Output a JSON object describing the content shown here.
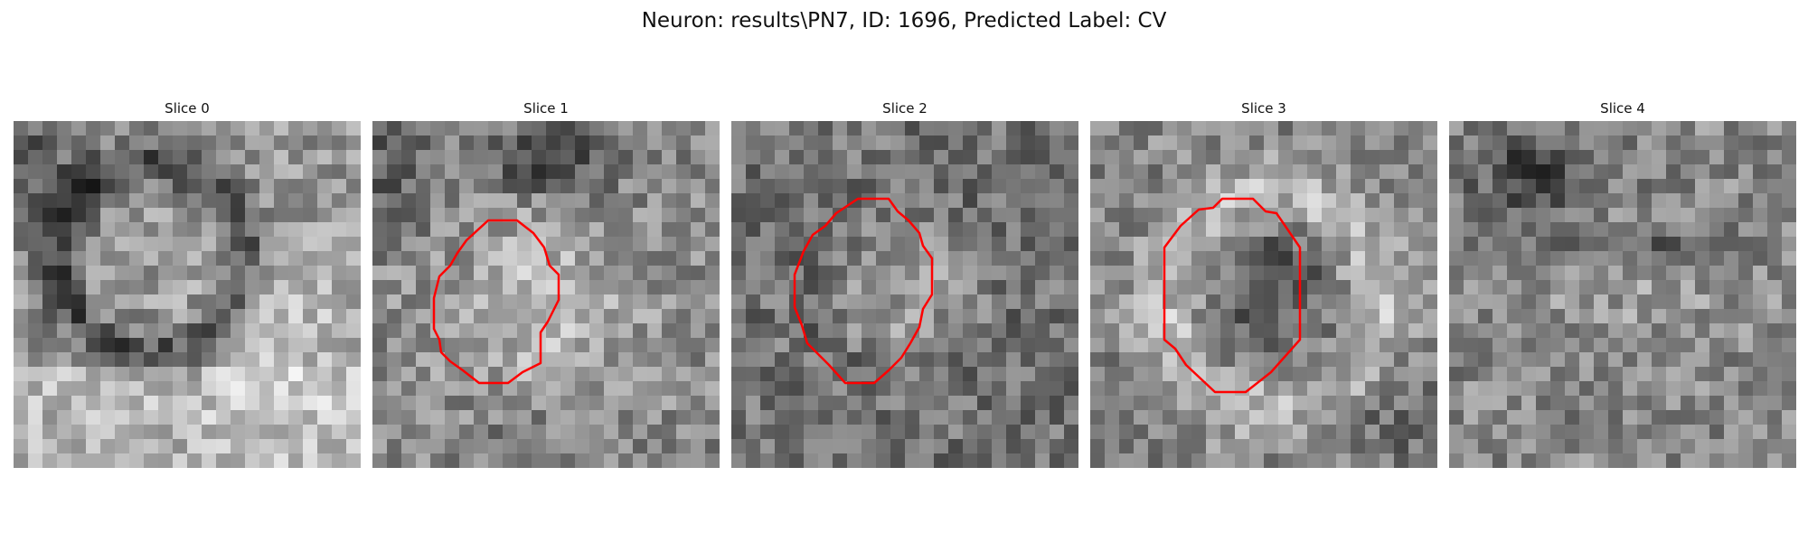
{
  "figure": {
    "title": "Neuron: results\\PN7, ID: 1696, Predicted Label: CV"
  },
  "colors": {
    "contour": "#ff0000",
    "background": "#ffffff"
  },
  "panels": [
    {
      "title": "Slice 0",
      "has_contour": false,
      "pattern": "ring-dark-top-left"
    },
    {
      "title": "Slice 1",
      "has_contour": true,
      "pattern": "bright-center-dark-top"
    },
    {
      "title": "Slice 2",
      "has_contour": true,
      "pattern": "mottled-bright-center"
    },
    {
      "title": "Slice 3",
      "has_contour": true,
      "pattern": "bright-ring-dark-center"
    },
    {
      "title": "Slice 4",
      "has_contour": false,
      "pattern": "mottled-dark-top"
    }
  ]
}
